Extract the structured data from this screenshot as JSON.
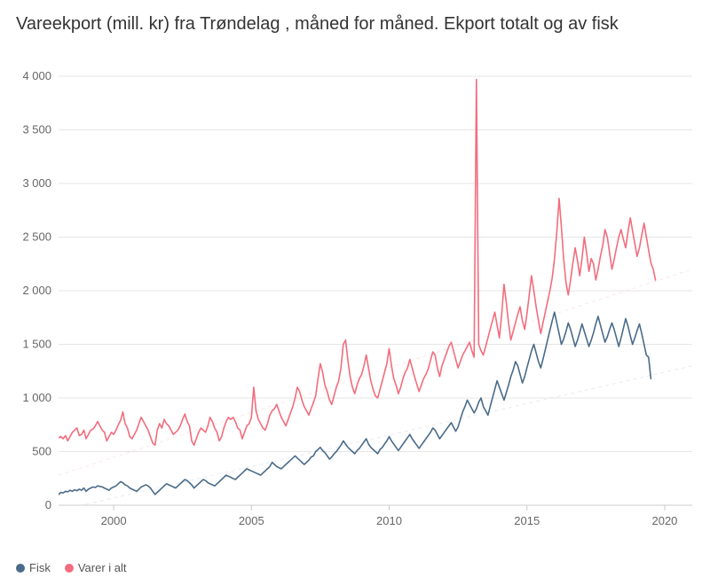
{
  "title": "Vareekport (mill. kr) fra Trøndelag , måned for måned. Ekport totalt og av fisk",
  "chart": {
    "type": "line",
    "background_color": "#ffffff",
    "grid_color": "#e6e6e6",
    "axis_color": "#cccccc",
    "tick_label_color": "#666666",
    "tick_fontsize": 13,
    "title_fontsize": 20,
    "title_color": "#333333",
    "line_width": 1.6,
    "trend_line_width": 1.0,
    "trend_dash": "4 4",
    "trend_opacity": 0.35,
    "xlim": [
      1998,
      2021
    ],
    "ylim": [
      0,
      4000
    ],
    "ytick_step": 500,
    "xticks": [
      2000,
      2005,
      2010,
      2015,
      2020
    ],
    "ytick_labels": [
      "0",
      "500",
      "1 000",
      "1 500",
      "2 000",
      "2 500",
      "3 000",
      "3 500",
      "4 000"
    ],
    "x_start": 1998,
    "x_step_years": 0.0833333,
    "series": [
      {
        "name": "Varer i alt",
        "color": "#f26d7d",
        "trend_color": "#f8b8c0",
        "trend_start_y": 280,
        "trend_end_y": 2200,
        "values": [
          630,
          640,
          620,
          650,
          600,
          640,
          680,
          700,
          720,
          650,
          660,
          700,
          620,
          660,
          700,
          710,
          740,
          780,
          740,
          700,
          680,
          600,
          640,
          680,
          660,
          700,
          750,
          790,
          870,
          760,
          720,
          640,
          620,
          660,
          700,
          760,
          820,
          780,
          740,
          700,
          640,
          580,
          560,
          700,
          760,
          720,
          800,
          760,
          740,
          700,
          660,
          680,
          700,
          740,
          800,
          850,
          780,
          740,
          600,
          560,
          620,
          680,
          720,
          700,
          680,
          740,
          820,
          780,
          720,
          680,
          600,
          640,
          720,
          780,
          820,
          800,
          820,
          780,
          720,
          700,
          620,
          680,
          740,
          760,
          820,
          1100,
          880,
          800,
          760,
          720,
          700,
          760,
          840,
          880,
          900,
          940,
          880,
          820,
          780,
          740,
          800,
          860,
          920,
          1000,
          1100,
          1060,
          980,
          920,
          880,
          840,
          900,
          960,
          1020,
          1180,
          1320,
          1240,
          1120,
          1060,
          980,
          940,
          1020,
          1100,
          1160,
          1280,
          1500,
          1540,
          1350,
          1200,
          1100,
          1040,
          1120,
          1180,
          1220,
          1300,
          1400,
          1280,
          1160,
          1080,
          1020,
          1000,
          1080,
          1160,
          1240,
          1320,
          1460,
          1300,
          1180,
          1120,
          1040,
          1100,
          1180,
          1240,
          1280,
          1360,
          1280,
          1200,
          1130,
          1060,
          1120,
          1180,
          1220,
          1270,
          1350,
          1430,
          1400,
          1280,
          1200,
          1300,
          1360,
          1420,
          1480,
          1520,
          1440,
          1360,
          1280,
          1340,
          1400,
          1440,
          1480,
          1520,
          1440,
          1380,
          3970,
          1500,
          1440,
          1400,
          1480,
          1560,
          1640,
          1720,
          1800,
          1680,
          1560,
          1780,
          2060,
          1890,
          1700,
          1540,
          1620,
          1700,
          1780,
          1850,
          1720,
          1640,
          1780,
          1960,
          2140,
          2000,
          1850,
          1720,
          1600,
          1700,
          1800,
          1900,
          2000,
          2120,
          2300,
          2550,
          2860,
          2600,
          2300,
          2080,
          1960,
          2100,
          2260,
          2400,
          2280,
          2140,
          2300,
          2500,
          2350,
          2180,
          2300,
          2250,
          2100,
          2200,
          2320,
          2420,
          2570,
          2500,
          2350,
          2200,
          2290,
          2400,
          2500,
          2570,
          2480,
          2400,
          2550,
          2680,
          2560,
          2440,
          2320,
          2400,
          2520,
          2630,
          2500,
          2380,
          2260,
          2200,
          2100
        ]
      },
      {
        "name": "Fisk",
        "color": "#4a6b8a",
        "trend_color": "#b8c5d4",
        "trend_start_y": -50,
        "trend_end_y": 1300,
        "values": [
          100,
          120,
          115,
          130,
          125,
          140,
          130,
          145,
          135,
          150,
          140,
          160,
          130,
          150,
          160,
          170,
          165,
          180,
          175,
          170,
          160,
          150,
          140,
          160,
          170,
          180,
          200,
          220,
          210,
          190,
          180,
          160,
          150,
          140,
          130,
          150,
          170,
          180,
          190,
          180,
          160,
          130,
          100,
          120,
          140,
          160,
          180,
          200,
          190,
          180,
          170,
          160,
          180,
          200,
          220,
          240,
          230,
          210,
          190,
          160,
          180,
          200,
          220,
          240,
          230,
          210,
          200,
          190,
          180,
          200,
          220,
          240,
          260,
          280,
          270,
          260,
          250,
          240,
          260,
          280,
          300,
          320,
          340,
          330,
          320,
          310,
          300,
          290,
          280,
          300,
          320,
          340,
          360,
          400,
          380,
          360,
          350,
          340,
          360,
          380,
          400,
          420,
          440,
          460,
          440,
          420,
          400,
          380,
          400,
          420,
          450,
          460,
          500,
          520,
          540,
          510,
          490,
          460,
          430,
          450,
          480,
          500,
          530,
          560,
          600,
          570,
          540,
          520,
          500,
          480,
          510,
          530,
          560,
          590,
          620,
          570,
          540,
          520,
          500,
          480,
          520,
          540,
          570,
          600,
          640,
          600,
          570,
          540,
          510,
          540,
          570,
          600,
          630,
          660,
          620,
          590,
          560,
          530,
          560,
          590,
          620,
          650,
          680,
          720,
          700,
          660,
          620,
          650,
          680,
          710,
          740,
          770,
          730,
          690,
          730,
          800,
          870,
          920,
          980,
          940,
          900,
          860,
          900,
          960,
          1000,
          920,
          880,
          840,
          920,
          1000,
          1080,
          1160,
          1100,
          1040,
          980,
          1050,
          1120,
          1200,
          1260,
          1340,
          1300,
          1220,
          1140,
          1200,
          1280,
          1360,
          1440,
          1500,
          1420,
          1340,
          1280,
          1360,
          1450,
          1540,
          1630,
          1720,
          1800,
          1700,
          1600,
          1500,
          1550,
          1620,
          1700,
          1640,
          1560,
          1480,
          1540,
          1610,
          1690,
          1620,
          1550,
          1480,
          1540,
          1610,
          1690,
          1760,
          1680,
          1600,
          1520,
          1570,
          1640,
          1700,
          1640,
          1560,
          1480,
          1560,
          1650,
          1740,
          1670,
          1580,
          1500,
          1560,
          1630,
          1690,
          1600,
          1500,
          1400,
          1380,
          1180
        ]
      }
    ]
  },
  "legend": {
    "items": [
      {
        "label": "Fisk",
        "series_index": 1
      },
      {
        "label": "Varer i alt",
        "series_index": 0
      }
    ]
  }
}
